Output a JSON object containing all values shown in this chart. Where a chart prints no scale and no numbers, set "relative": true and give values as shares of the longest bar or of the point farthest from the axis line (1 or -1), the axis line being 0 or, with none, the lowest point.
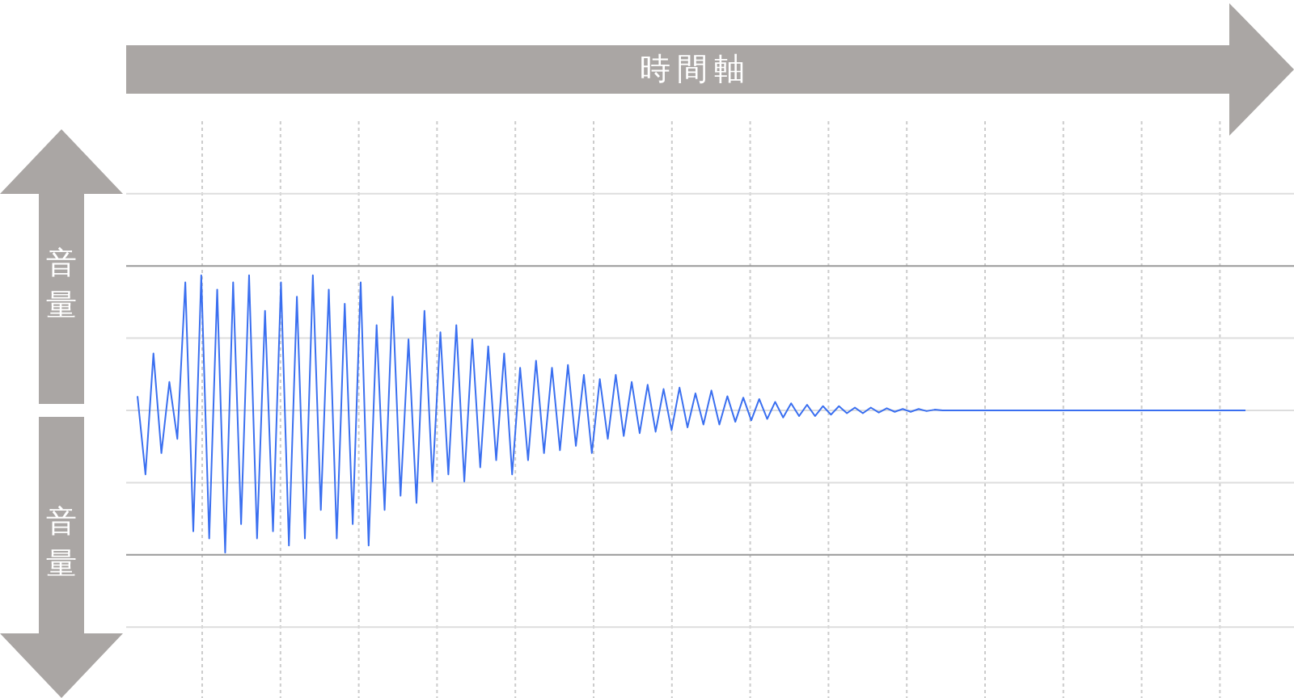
{
  "chart_data": {
    "type": "line",
    "relative": true,
    "annotations": [
      "時間軸",
      "音量",
      "音量"
    ],
    "grid": true,
    "color": "#3a6ff0",
    "categories": [
      null,
      null,
      null,
      null,
      null,
      null,
      null,
      null,
      null,
      null,
      null,
      null,
      null,
      null,
      null,
      null,
      null,
      null,
      null,
      null,
      null,
      null,
      null,
      null,
      null,
      null,
      null,
      null,
      null,
      null,
      null,
      null,
      null,
      null,
      null,
      null,
      null,
      null,
      null,
      null,
      null,
      null,
      null,
      null,
      null,
      null,
      null,
      null,
      null,
      null,
      null,
      null,
      null,
      null,
      null,
      null,
      null,
      null,
      null,
      null,
      null,
      null,
      null,
      null,
      null,
      null,
      null,
      null,
      null,
      null,
      null,
      null,
      null,
      null,
      null,
      null,
      null,
      null,
      null,
      null,
      null,
      null,
      null,
      null,
      null,
      null,
      null,
      null,
      null,
      null,
      null,
      null,
      null,
      null,
      null,
      null,
      null,
      null,
      null,
      null,
      null,
      null,
      null,
      null,
      null,
      null,
      null,
      null,
      null,
      null,
      null,
      null,
      null,
      null,
      null,
      null,
      null,
      null,
      null,
      null,
      null,
      null,
      null,
      null,
      null,
      null,
      null,
      null,
      null,
      null,
      null,
      null,
      null,
      null,
      null,
      null,
      null,
      null,
      null,
      null
    ],
    "values": [
      0.1,
      -0.45,
      0.4,
      -0.3,
      0.2,
      -0.2,
      0.9,
      -0.85,
      0.95,
      -0.9,
      0.85,
      -1,
      0.9,
      -0.8,
      0.95,
      -0.9,
      0.7,
      -0.85,
      0.9,
      -0.95,
      0.8,
      -0.9,
      0.95,
      -0.7,
      0.85,
      -0.9,
      0.75,
      -0.8,
      0.9,
      -0.95,
      0.6,
      -0.7,
      0.8,
      -0.6,
      0.5,
      -0.65,
      0.7,
      -0.5,
      0.55,
      -0.45,
      0.6,
      -0.5,
      0.5,
      -0.4,
      0.45,
      -0.35,
      0.4,
      -0.45,
      0.3,
      -0.35,
      0.35,
      -0.3,
      0.3,
      -0.28,
      0.32,
      -0.25,
      0.25,
      -0.3,
      0.22,
      -0.2,
      0.25,
      -0.18,
      0.2,
      -0.16,
      0.18,
      -0.15,
      0.15,
      -0.14,
      0.16,
      -0.12,
      0.12,
      -0.1,
      0.14,
      -0.1,
      0.1,
      -0.08,
      0.09,
      -0.07,
      0.08,
      -0.06,
      0.06,
      -0.05,
      0.05,
      -0.04,
      0.04,
      -0.04,
      0.03,
      -0.03,
      0.03,
      -0.02,
      0.02,
      -0.02,
      0.02,
      -0.015,
      0.015,
      -0.01,
      0.01,
      -0.01,
      0.01,
      -0.005,
      0.005,
      0,
      0,
      0,
      0,
      0,
      0,
      0,
      0,
      0,
      0,
      0,
      0,
      0,
      0,
      0,
      0,
      0,
      0,
      0,
      0,
      0,
      0,
      0,
      0,
      0,
      0,
      0,
      0,
      0,
      0,
      0,
      0,
      0,
      0,
      0,
      0,
      0,
      0,
      0
    ]
  }
}
